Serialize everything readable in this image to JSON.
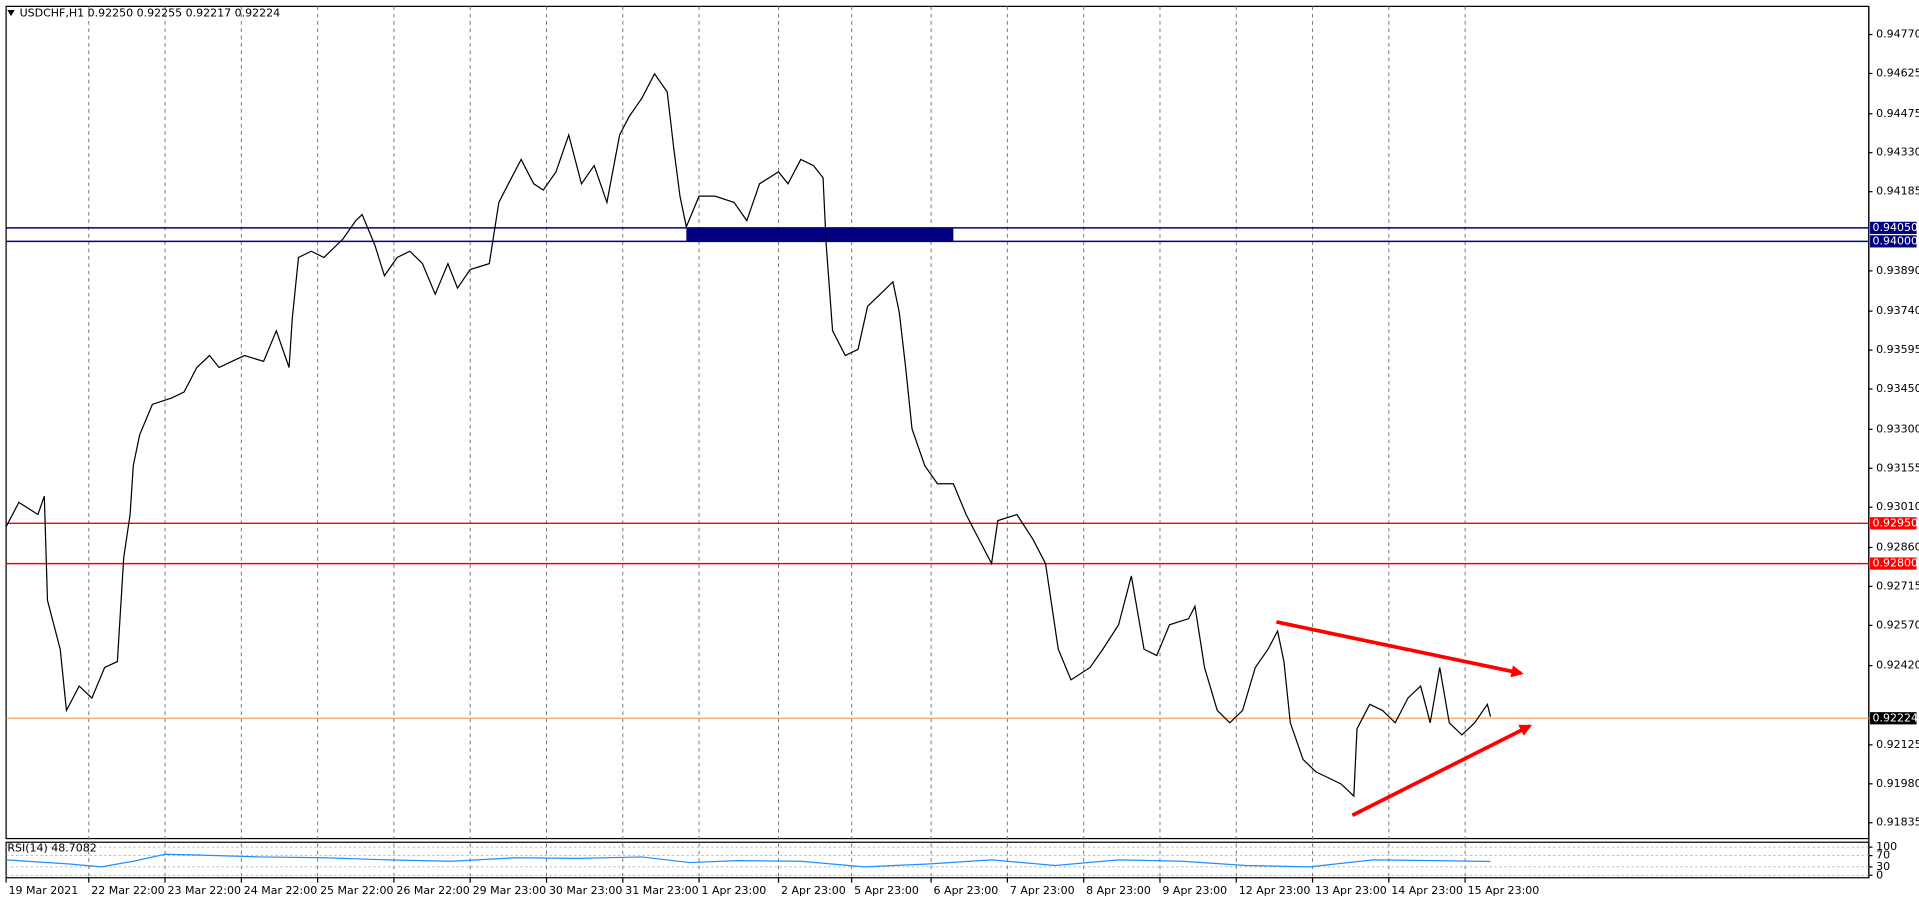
{
  "chart_data": [
    {
      "type": "line",
      "title": "USDCHF,H1  0.92250 0.92255 0.92217 0.92224",
      "xlim": [
        0,
        586
      ],
      "ylim": [
        0.91776,
        0.94875
      ],
      "grid": true,
      "xticks": [
        {
          "value": 0,
          "label": "19 Mar 2021"
        },
        {
          "value": 26,
          "label": "22 Mar 22:00"
        },
        {
          "value": 50,
          "label": "23 Mar 22:00"
        },
        {
          "value": 74,
          "label": "24 Mar 22:00"
        },
        {
          "value": 98,
          "label": "25 Mar 22:00"
        },
        {
          "value": 122,
          "label": "26 Mar 22:00"
        },
        {
          "value": 146,
          "label": "29 Mar 23:00"
        },
        {
          "value": 170,
          "label": "30 Mar 23:00"
        },
        {
          "value": 194,
          "label": "31 Mar 23:00"
        },
        {
          "value": 218,
          "label": "1 Apr 23:00"
        },
        {
          "value": 243,
          "label": "2 Apr 23:00"
        },
        {
          "value": 266,
          "label": "5 Apr 23:00"
        },
        {
          "value": 291,
          "label": "6 Apr 23:00"
        },
        {
          "value": 315,
          "label": "7 Apr 23:00"
        },
        {
          "value": 339,
          "label": "8 Apr 23:00"
        },
        {
          "value": 363,
          "label": "9 Apr 23:00"
        },
        {
          "value": 387,
          "label": "12 Apr 23:00"
        },
        {
          "value": 411,
          "label": "13 Apr 23:00"
        },
        {
          "value": 435,
          "label": "14 Apr 23:00"
        },
        {
          "value": 459,
          "label": "15 Apr 23:00"
        }
      ],
      "yticks": [
        {
          "value": 0.9477,
          "label": "0.94770"
        },
        0.94625,
        0.94475,
        {
          "value": 0.9433,
          "label": "0.94330"
        },
        0.94185,
        {
          "value": 0.9389,
          "label": "0.93890"
        },
        {
          "value": 0.9374,
          "label": "0.93740"
        },
        0.93595,
        {
          "value": 0.9345,
          "label": "0.93450"
        },
        {
          "value": 0.933,
          "label": "0.93300"
        },
        0.93155,
        {
          "value": 0.9301,
          "label": "0.93010"
        },
        {
          "value": 0.9286,
          "label": "0.92860"
        },
        0.92715,
        {
          "value": 0.9257,
          "label": "0.92570"
        },
        {
          "value": 0.9242,
          "label": "0.92420"
        },
        0.92125,
        {
          "value": 0.9198,
          "label": "0.91980"
        },
        0.91835
      ],
      "series": [
        {
          "color": "#000000",
          "x": [
            0,
            4,
            10,
            12,
            13,
            17,
            19,
            23,
            27,
            31,
            35,
            37,
            39,
            40,
            42,
            46,
            52,
            56,
            60,
            64,
            67,
            71,
            75,
            81,
            85,
            89,
            90,
            92,
            96,
            100,
            106,
            110,
            112,
            116,
            119,
            123,
            127,
            131,
            135,
            139,
            142,
            146,
            152,
            155,
            158,
            162,
            166,
            169,
            173,
            177,
            181,
            185,
            189,
            193,
            196,
            200,
            204,
            208,
            210,
            212,
            214,
            218,
            223,
            229,
            233,
            237,
            243,
            246,
            250,
            254,
            257,
            258,
            260,
            264,
            268,
            271,
            275,
            279,
            281,
            283,
            285,
            289,
            293,
            298,
            302,
            306,
            310,
            312,
            318,
            323,
            327,
            331,
            335,
            341,
            345,
            350,
            354,
            358,
            362,
            366,
            372,
            374,
            377,
            381,
            385,
            389,
            393,
            397,
            400,
            402,
            404,
            408,
            412,
            416,
            420,
            424,
            425,
            429,
            433,
            437,
            441,
            445,
            448,
            451,
            454,
            458,
            462,
            466,
            467
          ],
          "values": [
            0.92937,
            0.93028,
            0.92983,
            0.93051,
            0.92663,
            0.92481,
            0.92253,
            0.92344,
            0.92299,
            0.92413,
            0.92435,
            0.92823,
            0.92983,
            0.93165,
            0.93279,
            0.93393,
            0.93416,
            0.93439,
            0.9353,
            0.93575,
            0.9353,
            0.93553,
            0.93575,
            0.93553,
            0.93667,
            0.9353,
            0.93712,
            0.9394,
            0.93963,
            0.9394,
            0.94009,
            0.94077,
            0.941,
            0.93986,
            0.93872,
            0.9394,
            0.93963,
            0.93917,
            0.93803,
            0.93917,
            0.93826,
            0.93895,
            0.93917,
            0.94145,
            0.94214,
            0.94305,
            0.94214,
            0.94191,
            0.94259,
            0.94396,
            0.94214,
            0.94282,
            0.94145,
            0.94396,
            0.94465,
            0.94533,
            0.94624,
            0.94556,
            0.94351,
            0.94168,
            0.94054,
            0.94168,
            0.94168,
            0.94145,
            0.94077,
            0.94214,
            0.94259,
            0.94214,
            0.94305,
            0.94282,
            0.94237,
            0.93986,
            0.93667,
            0.93575,
            0.93598,
            0.93758,
            0.93803,
            0.93849,
            0.93735,
            0.9353,
            0.93302,
            0.93165,
            0.93097,
            0.93097,
            0.92983,
            0.92891,
            0.928,
            0.9296,
            0.92983,
            0.92891,
            0.928,
            0.92481,
            0.92367,
            0.92413,
            0.92481,
            0.92572,
            0.92754,
            0.92481,
            0.92458,
            0.92572,
            0.92595,
            0.92641,
            0.92413,
            0.92253,
            0.92207,
            0.92253,
            0.92413,
            0.92481,
            0.92549,
            0.92435,
            0.92207,
            0.92071,
            0.92025,
            0.92002,
            0.91979,
            0.91934,
            0.92185,
            0.92276,
            0.92253,
            0.92207,
            0.92299,
            0.92344,
            0.92207,
            0.92413,
            0.92207,
            0.92162,
            0.92207,
            0.92276,
            0.9223
          ]
        }
      ],
      "price_lines": [
        {
          "value": 0.9405,
          "label": "0.94050",
          "color": "#000080"
        },
        {
          "value": 0.94,
          "label": "0.94000",
          "color": "#000080"
        },
        {
          "value": 0.9295,
          "label": "0.92950",
          "color": "#ff0000"
        },
        {
          "value": 0.928,
          "label": "0.92800",
          "color": "#ff0000"
        }
      ],
      "current_price": {
        "value": 0.92224,
        "color": "#f4a460"
      },
      "zone": {
        "x": [
          214,
          298
        ],
        "y": [
          0.94,
          0.9405
        ],
        "color": "#000080"
      }
    },
    {
      "type": "line",
      "title": "RSI(14) 48.7082",
      "xlim": [
        0,
        586
      ],
      "ylim": [
        0,
        100
      ],
      "yticks": [
        0,
        30,
        70,
        100
      ],
      "series": [
        {
          "color": "#1e90ff",
          "x": [
            0,
            20,
            30,
            40,
            50,
            60,
            80,
            100,
            120,
            140,
            160,
            180,
            200,
            215,
            230,
            250,
            270,
            290,
            310,
            330,
            350,
            370,
            390,
            410,
            430,
            450,
            467
          ],
          "values": [
            55,
            40,
            30,
            50,
            75,
            72,
            65,
            62,
            55,
            50,
            62,
            60,
            65,
            45,
            52,
            50,
            30,
            40,
            55,
            35,
            55,
            50,
            35,
            30,
            55,
            52,
            49
          ]
        }
      ]
    }
  ]
}
